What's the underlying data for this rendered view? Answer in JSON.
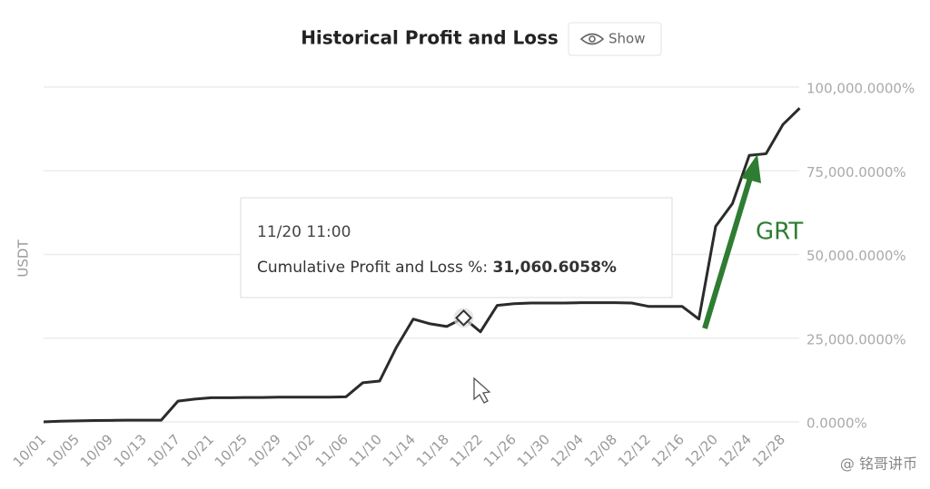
{
  "chart_data": {
    "type": "line",
    "title": "Historical Profit and Loss",
    "button": "Show",
    "y_label": "USDT",
    "color": "#2b2b2b",
    "grid": true,
    "categories": [
      "10/01",
      null,
      "10/05",
      null,
      "10/09",
      null,
      "10/13",
      null,
      "10/17",
      null,
      "10/21",
      null,
      "10/25",
      null,
      "10/29",
      null,
      "11/02",
      null,
      "11/06",
      null,
      "11/10",
      null,
      "11/14",
      null,
      "11/18",
      null,
      "11/22",
      null,
      "11/26",
      null,
      "11/30",
      null,
      "12/04",
      null,
      "12/08",
      null,
      "12/12",
      null,
      "12/16",
      null,
      "12/20",
      null,
      "12/24",
      null,
      "12/28",
      null
    ],
    "values": [
      0,
      200,
      300,
      400,
      450,
      500,
      500,
      500,
      6200,
      6800,
      7200,
      7200,
      7300,
      7300,
      7400,
      7400,
      7400,
      7400,
      7500,
      11700,
      12200,
      22300,
      30700,
      29300,
      28500,
      31060.6058,
      26900,
      34800,
      35300,
      35500,
      35500,
      35500,
      35600,
      35600,
      35600,
      35500,
      34500,
      34500,
      34500,
      30700,
      58400,
      65200,
      79600,
      80100,
      88800,
      93700
    ],
    "ylim": [
      0,
      100000
    ],
    "yticks": [
      {
        "value": 0,
        "label": "0.0000%"
      },
      {
        "value": 25000,
        "label": "25,000.0000%"
      },
      {
        "value": 50000,
        "label": "50,000.0000%"
      },
      {
        "value": 75000,
        "label": "75,000.0000%"
      },
      {
        "value": 100000,
        "label": "100,000.0000%"
      }
    ],
    "tooltip": {
      "date": "11/20 11:00",
      "label": "Cumulative Profit and Loss %:",
      "value": "31,060.6058%"
    },
    "annotation": {
      "text": "GRT",
      "color": "#2e7d32"
    },
    "watermark": "@ 铭哥讲币"
  }
}
